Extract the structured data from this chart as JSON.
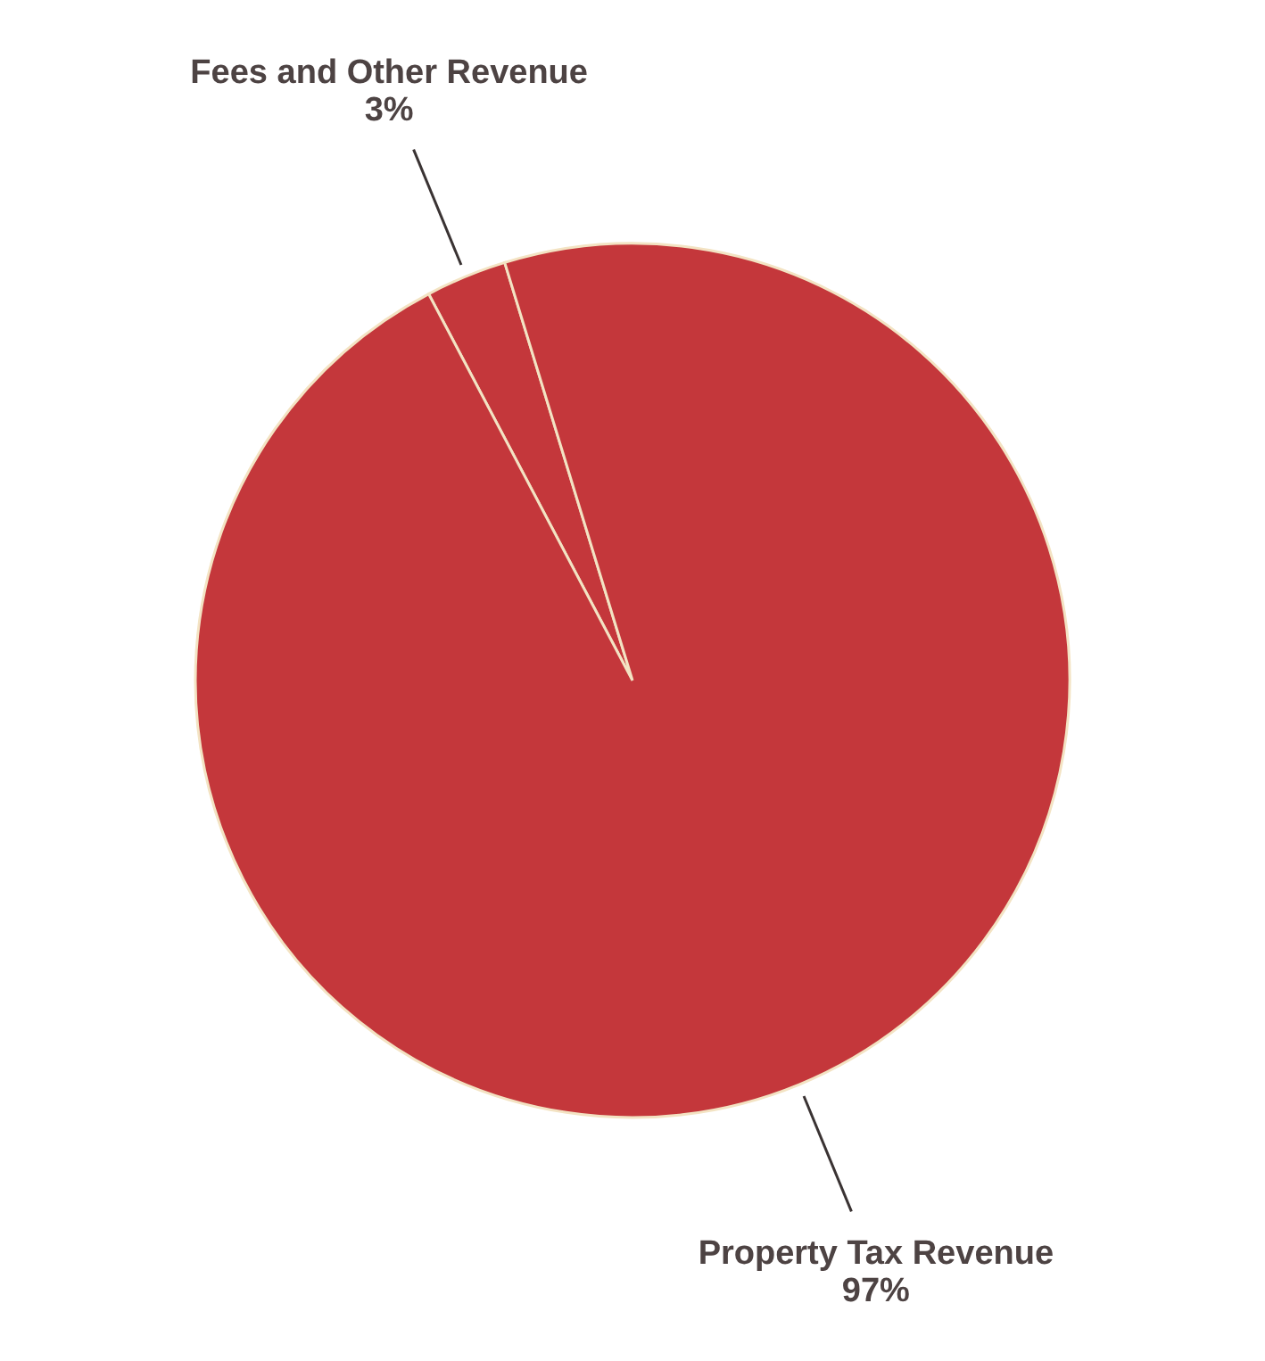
{
  "chart_data": {
    "type": "pie",
    "categories": [
      "Fees and Other Revenue",
      "Property Tax Revenue"
    ],
    "values": [
      3,
      97
    ],
    "colors": [
      "#c4373b",
      "#c4373b"
    ],
    "value_labels": [
      "3%",
      "97%"
    ]
  }
}
